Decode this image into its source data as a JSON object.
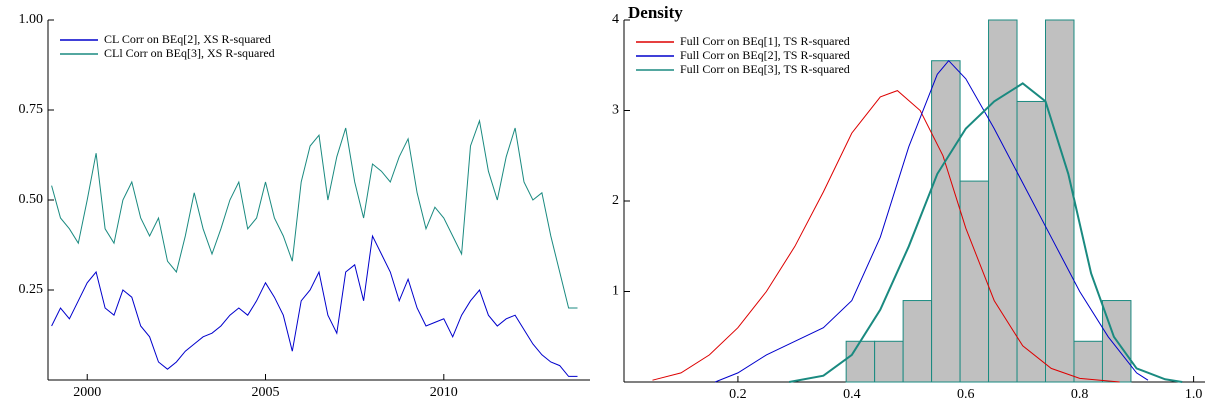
{
  "chart_data": [
    {
      "type": "line",
      "legend": "upper left",
      "xlim": [
        1998.9,
        2014.1
      ],
      "ylim": [
        0,
        1
      ],
      "xticks": [
        2000,
        2005,
        2010
      ],
      "yticks": [
        0.25,
        {
          "value": 0.5,
          "label": "0.50"
        },
        0.75,
        {
          "value": 1,
          "label": "1.00"
        }
      ],
      "x": [
        1999,
        1999.25,
        1999.5,
        1999.75,
        2000,
        2000.25,
        2000.5,
        2000.75,
        2001,
        2001.25,
        2001.5,
        2001.75,
        2002,
        2002.25,
        2002.5,
        2002.75,
        2003,
        2003.25,
        2003.5,
        2003.75,
        2004,
        2004.25,
        2004.5,
        2004.75,
        2005,
        2005.25,
        2005.5,
        2005.75,
        2006,
        2006.25,
        2006.5,
        2006.75,
        2007,
        2007.25,
        2007.5,
        2007.75,
        2008,
        2008.25,
        2008.5,
        2008.75,
        2009,
        2009.25,
        2009.5,
        2009.75,
        2010,
        2010.25,
        2010.5,
        2010.75,
        2011,
        2011.25,
        2011.5,
        2011.75,
        2012,
        2012.25,
        2012.5,
        2012.75,
        2013,
        2013.25,
        2013.5,
        2013.75
      ],
      "series": [
        {
          "name": "CL Corr on BEq[2], XS R-squared",
          "color": "#0000cc",
          "values": [
            0.15,
            0.2,
            0.17,
            0.22,
            0.27,
            0.3,
            0.2,
            0.18,
            0.25,
            0.23,
            0.15,
            0.12,
            0.05,
            0.03,
            0.05,
            0.08,
            0.1,
            0.12,
            0.13,
            0.15,
            0.18,
            0.2,
            0.18,
            0.22,
            0.27,
            0.23,
            0.18,
            0.08,
            0.22,
            0.25,
            0.3,
            0.18,
            0.13,
            0.3,
            0.32,
            0.22,
            0.4,
            0.35,
            0.3,
            0.22,
            0.28,
            0.2,
            0.15,
            0.16,
            0.17,
            0.12,
            0.18,
            0.22,
            0.25,
            0.18,
            0.15,
            0.17,
            0.18,
            0.14,
            0.1,
            0.07,
            0.05,
            0.04,
            0.01,
            0.01
          ]
        },
        {
          "name": "CLl Corr on BEq[3], XS R-squared",
          "color": "#1a8a80",
          "values": [
            0.54,
            0.45,
            0.42,
            0.38,
            0.5,
            0.63,
            0.42,
            0.38,
            0.5,
            0.55,
            0.45,
            0.4,
            0.45,
            0.33,
            0.3,
            0.4,
            0.52,
            0.42,
            0.35,
            0.42,
            0.5,
            0.55,
            0.42,
            0.45,
            0.55,
            0.45,
            0.4,
            0.33,
            0.55,
            0.65,
            0.68,
            0.5,
            0.62,
            0.7,
            0.55,
            0.45,
            0.6,
            0.58,
            0.55,
            0.62,
            0.67,
            0.52,
            0.42,
            0.48,
            0.45,
            0.4,
            0.35,
            0.65,
            0.72,
            0.58,
            0.5,
            0.62,
            0.7,
            0.55,
            0.5,
            0.52,
            0.4,
            0.3,
            0.2,
            0.2
          ]
        }
      ]
    },
    {
      "type": "histogram",
      "title": "Density",
      "legend": "upper left",
      "xlim": [
        0,
        1.02
      ],
      "ylim": [
        0,
        4
      ],
      "xticks": [
        0.2,
        0.4,
        0.6,
        0.8,
        {
          "value": 1,
          "label": "1.0"
        }
      ],
      "yticks": [
        1,
        2,
        3,
        4
      ],
      "bins": [
        0.39,
        0.44,
        0.49,
        0.54,
        0.59,
        0.64,
        0.69,
        0.74,
        0.79,
        0.84,
        0.89
      ],
      "values": [
        0.45,
        0.45,
        0.9,
        3.55,
        2.22,
        4.0,
        3.1,
        4.0,
        0.45,
        0.9
      ],
      "color": "#c0c0c0",
      "edgecolor": "#1a8a80",
      "series": [
        {
          "name": "Full Corr on BEq[1], TS R-squared",
          "color": "#dd0000",
          "x": [
            0.05,
            0.1,
            0.15,
            0.2,
            0.25,
            0.3,
            0.35,
            0.4,
            0.45,
            0.48,
            0.52,
            0.56,
            0.6,
            0.65,
            0.7,
            0.75,
            0.8,
            0.87
          ],
          "values": [
            0.02,
            0.1,
            0.3,
            0.6,
            1.0,
            1.5,
            2.1,
            2.75,
            3.15,
            3.22,
            3.0,
            2.5,
            1.7,
            0.9,
            0.4,
            0.15,
            0.04,
            0
          ]
        },
        {
          "name": "Full Corr on BEq[2], TS R-squared",
          "color": "#0000cc",
          "x": [
            0.16,
            0.2,
            0.25,
            0.3,
            0.35,
            0.4,
            0.45,
            0.5,
            0.55,
            0.57,
            0.6,
            0.65,
            0.7,
            0.75,
            0.8,
            0.85,
            0.9,
            0.92
          ],
          "values": [
            0,
            0.1,
            0.3,
            0.45,
            0.6,
            0.9,
            1.6,
            2.6,
            3.4,
            3.55,
            3.35,
            2.8,
            2.2,
            1.6,
            1.0,
            0.5,
            0.1,
            0.02
          ]
        },
        {
          "name": "Full Corr on BEq[3], TS R-squared",
          "color": "#1a8a80",
          "x": [
            0.29,
            0.35,
            0.4,
            0.45,
            0.5,
            0.55,
            0.6,
            0.65,
            0.7,
            0.74,
            0.78,
            0.82,
            0.86,
            0.9,
            0.95,
            0.98
          ],
          "values": [
            0,
            0.07,
            0.3,
            0.8,
            1.5,
            2.3,
            2.8,
            3.1,
            3.3,
            3.1,
            2.3,
            1.2,
            0.5,
            0.15,
            0.03,
            0
          ]
        }
      ]
    }
  ]
}
